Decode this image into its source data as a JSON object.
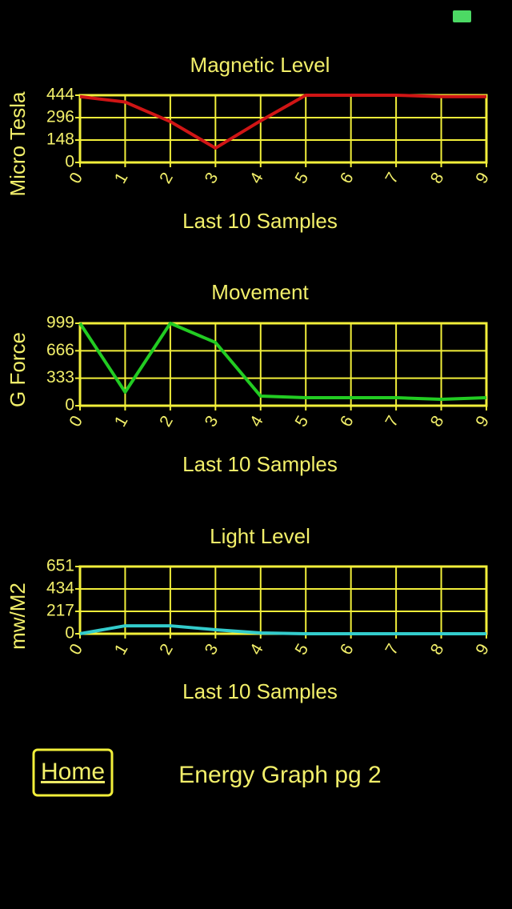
{
  "chart_data": [
    {
      "type": "line",
      "title": "Magnetic Level",
      "xlabel": "Last 10 Samples",
      "ylabel": "Micro Tesla",
      "x": [
        0,
        1,
        2,
        3,
        4,
        5,
        6,
        7,
        8,
        9
      ],
      "values": [
        435,
        399,
        270,
        95,
        275,
        444,
        444,
        444,
        435,
        435
      ],
      "color": "#d01515",
      "xlim": [
        0,
        9
      ],
      "xticks": [
        0,
        1,
        2,
        3,
        4,
        5,
        6,
        7,
        8,
        9
      ],
      "ylim": [
        0,
        444
      ],
      "yticks": [
        0,
        148,
        296,
        444
      ],
      "grid": true
    },
    {
      "type": "line",
      "title": "Movement",
      "xlabel": "Last 10 Samples",
      "ylabel": "G Force",
      "x": [
        0,
        1,
        2,
        3,
        4,
        5,
        6,
        7,
        8,
        9
      ],
      "values": [
        999,
        165,
        999,
        766,
        116,
        97,
        97,
        97,
        78,
        97
      ],
      "color": "#22cc22",
      "xlim": [
        0,
        9
      ],
      "xticks": [
        0,
        1,
        2,
        3,
        4,
        5,
        6,
        7,
        8,
        9
      ],
      "ylim": [
        0,
        999
      ],
      "yticks": [
        0,
        333,
        666,
        999
      ],
      "grid": true
    },
    {
      "type": "line",
      "title": "Light Level",
      "xlabel": "Last 10 Samples",
      "ylabel": "mw/M2",
      "x": [
        0,
        1,
        2,
        3,
        4,
        5,
        6,
        7,
        8,
        9
      ],
      "values": [
        0,
        77,
        77,
        39,
        8,
        0,
        0,
        0,
        0,
        0
      ],
      "color": "#33cccc",
      "xlim": [
        0,
        9
      ],
      "xticks": [
        0,
        1,
        2,
        3,
        4,
        5,
        6,
        7,
        8,
        9
      ],
      "ylim": [
        0,
        651
      ],
      "yticks": [
        0,
        217,
        434,
        651
      ],
      "grid": true
    }
  ],
  "footer": {
    "button": "Home",
    "title": "Energy Graph pg 2"
  }
}
